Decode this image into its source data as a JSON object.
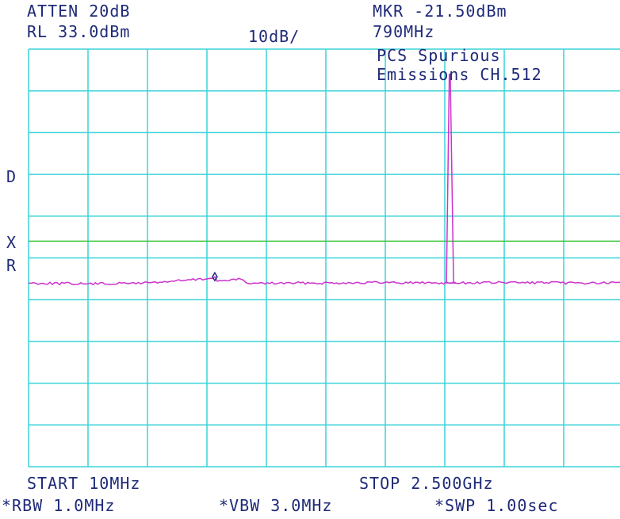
{
  "header": {
    "atten": "ATTEN 20dB",
    "ref_level": "RL 33.0dBm",
    "scale": "10dB/",
    "marker_amp": "MKR -21.50dBm",
    "marker_freq": "790MHz",
    "annotation_line1": "PCS Spurious",
    "annotation_line2": "Emissions CH.512"
  },
  "side_markers": {
    "d": "D",
    "x": "X",
    "r": "R"
  },
  "footer": {
    "start": "START 10MHz",
    "stop": "STOP 2.500GHz",
    "rbw": "*RBW 1.0MHz",
    "vbw": "*VBW 3.0MHz",
    "swp": "*SWP 1.00sec"
  },
  "colors": {
    "grid": "#39d3d8",
    "trace": "#cc33cc",
    "limit_line": "#3cc43c",
    "text": "#1f2a78"
  },
  "chart_data": {
    "type": "line",
    "title": "",
    "xlabel": "",
    "ylabel": "",
    "x_start_mhz": 10,
    "x_stop_mhz": 2500,
    "ref_level_dbm": 33.0,
    "db_per_div": 10,
    "vertical_divisions": 10,
    "horizontal_divisions": 10,
    "ylim": [
      -67.0,
      33.0
    ],
    "grid": true,
    "limit_line_dbm": -13.0,
    "noise_floor_dbm": -23.0,
    "series": [
      {
        "points": [
          [
            10,
            -23.0
          ],
          [
            250,
            -23.2
          ],
          [
            420,
            -23.1
          ],
          [
            560,
            -22.8
          ],
          [
            760,
            -22.0
          ],
          [
            790,
            -21.5
          ],
          [
            800,
            -22.6
          ],
          [
            900,
            -22.1
          ],
          [
            930,
            -23.1
          ],
          [
            1200,
            -23.0
          ],
          [
            1500,
            -22.9
          ],
          [
            1800,
            -23.0
          ],
          [
            1760,
            -23.0
          ],
          [
            1772,
            27.0
          ],
          [
            1776,
            27.0
          ],
          [
            1790,
            -23.0
          ],
          [
            2000,
            -22.9
          ],
          [
            2300,
            -23.0
          ],
          [
            2500,
            -23.0
          ]
        ]
      }
    ],
    "marker": {
      "freq_mhz": 790,
      "amp_dbm": -21.5
    }
  }
}
